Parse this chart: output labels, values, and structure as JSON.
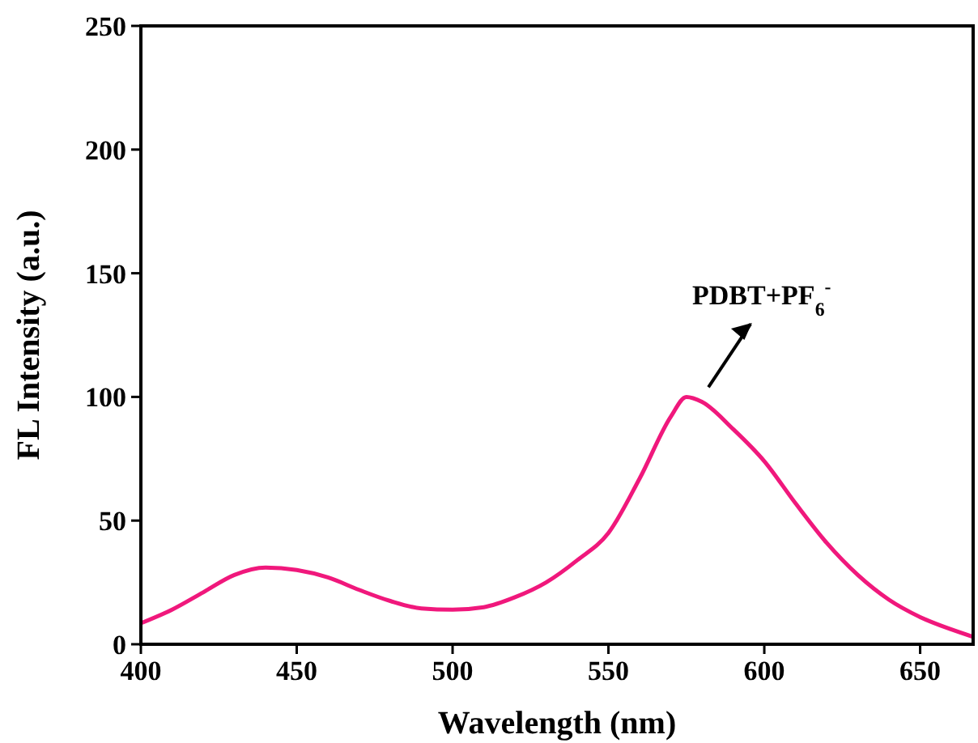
{
  "chart_data": {
    "type": "line",
    "xlabel": "Wavelength (nm)",
    "ylabel": "FL Intensity (a.u.)",
    "x": [
      400,
      410,
      420,
      430,
      440,
      450,
      460,
      470,
      480,
      490,
      500,
      510,
      520,
      530,
      540,
      550,
      560,
      570,
      575,
      580,
      590,
      600,
      610,
      620,
      630,
      640,
      650,
      660,
      667
    ],
    "series": [
      {
        "color": "#f0187c",
        "values": [
          8.5,
          14,
          21,
          28,
          31,
          30,
          27,
          22,
          17.5,
          14.5,
          14,
          15,
          19,
          25,
          34,
          45,
          67,
          92,
          100,
          98,
          87,
          74,
          57,
          41,
          28,
          18,
          11,
          6,
          3
        ]
      }
    ],
    "xlim": [
      400,
      667
    ],
    "xticks": [
      400,
      450,
      500,
      550,
      600,
      650
    ],
    "ylim": [
      0,
      250
    ],
    "yticks": [
      0,
      50,
      100,
      150,
      200,
      250
    ],
    "grid": false,
    "line_style": "solid",
    "annotations": [
      {
        "text": "PDBT+PF$_{6}$$^{-}$",
        "x": 580,
        "y": 100
      }
    ]
  }
}
